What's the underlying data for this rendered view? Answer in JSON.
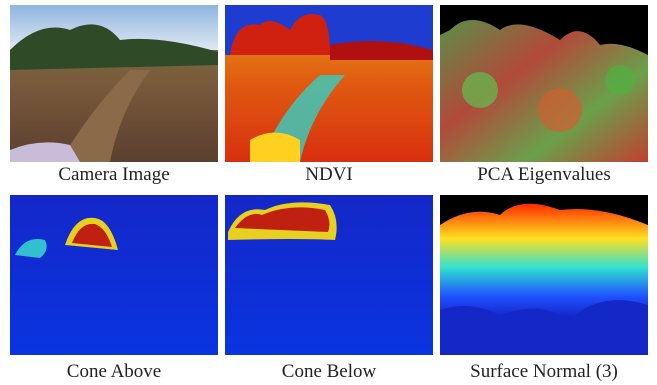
{
  "panels": [
    {
      "caption": "Camera Image"
    },
    {
      "caption": "NDVI"
    },
    {
      "caption": "PCA Eigenvalues"
    },
    {
      "caption": "Cone Above"
    },
    {
      "caption": "Cone Below"
    },
    {
      "caption": "Surface Normal (3)"
    }
  ]
}
